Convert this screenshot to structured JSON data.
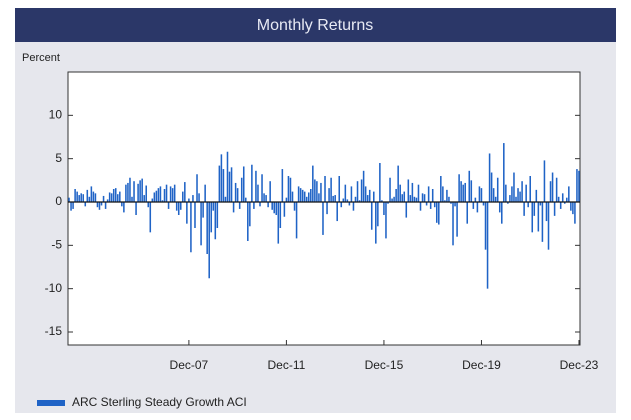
{
  "chart_data": {
    "type": "bar",
    "title": "Monthly Returns",
    "y_label": "Percent",
    "categories": [
      null,
      null,
      null,
      null,
      null,
      null,
      null,
      null,
      null,
      null,
      null,
      null,
      null,
      null,
      null,
      null,
      null,
      null,
      null,
      null,
      null,
      null,
      null,
      null,
      null,
      null,
      null,
      null,
      null,
      null,
      null,
      null,
      null,
      null,
      null,
      null,
      null,
      null,
      null,
      null,
      null,
      null,
      null,
      null,
      null,
      null,
      null,
      null,
      null,
      null,
      null,
      null,
      null,
      null,
      null,
      null,
      null,
      null,
      null,
      "Dec-07",
      null,
      null,
      null,
      null,
      null,
      null,
      null,
      null,
      null,
      null,
      null,
      null,
      null,
      null,
      null,
      null,
      null,
      null,
      null,
      null,
      null,
      null,
      null,
      null,
      null,
      null,
      null,
      null,
      null,
      null,
      null,
      null,
      null,
      null,
      null,
      null,
      null,
      null,
      null,
      null,
      null,
      null,
      null,
      null,
      null,
      null,
      null,
      "Dec-11",
      null,
      null,
      null,
      null,
      null,
      null,
      null,
      null,
      null,
      null,
      null,
      null,
      null,
      null,
      null,
      null,
      null,
      null,
      null,
      null,
      null,
      null,
      null,
      null,
      null,
      null,
      null,
      null,
      null,
      null,
      null,
      null,
      null,
      null,
      null,
      null,
      null,
      null,
      null,
      null,
      null,
      null,
      null,
      null,
      null,
      null,
      null,
      "Dec-15",
      null,
      null,
      null,
      null,
      null,
      null,
      null,
      null,
      null,
      null,
      null,
      null,
      null,
      null,
      null,
      null,
      null,
      null,
      null,
      null,
      null,
      null,
      null,
      null,
      null,
      null,
      null,
      null,
      null,
      null,
      null,
      null,
      null,
      null,
      null,
      null,
      null,
      null,
      null,
      null,
      null,
      null,
      null,
      null,
      null,
      null,
      null,
      "Dec-19",
      null,
      null,
      null,
      null,
      null,
      null,
      null,
      null,
      null,
      null,
      null,
      null,
      null,
      null,
      null,
      null,
      null,
      null,
      null,
      null,
      null,
      null,
      null,
      null,
      null,
      null,
      null,
      null,
      null,
      null,
      null,
      null,
      null,
      null,
      null,
      null,
      null,
      null,
      null,
      null,
      null,
      null,
      null,
      null,
      null,
      null,
      null,
      "Dec-23"
    ],
    "series": [
      {
        "name": "ARC Sterling Steady Growth ACI",
        "color": "#1f63c6",
        "values": [
          0.5,
          -1.0,
          -0.8,
          1.5,
          1.2,
          0.8,
          1.0,
          0.9,
          -0.5,
          1.4,
          0.6,
          1.8,
          1.2,
          1.0,
          -0.6,
          -0.9,
          -0.4,
          0.7,
          -0.8,
          0.3,
          1.1,
          1.0,
          1.5,
          1.6,
          0.9,
          1.2,
          -0.5,
          -1.2,
          2.0,
          2.2,
          2.8,
          0.6,
          2.4,
          -1.5,
          2.1,
          2.5,
          2.7,
          0.8,
          1.9,
          -0.6,
          -3.5,
          0.4,
          1.1,
          1.3,
          1.6,
          1.8,
          0.2,
          1.5,
          2.0,
          -0.8,
          1.8,
          1.6,
          2.0,
          -1.0,
          -1.5,
          -0.9,
          1.2,
          2.3,
          -2.5,
          0.4,
          -5.8,
          0.8,
          -3.0,
          3.2,
          1.0,
          -5.0,
          -1.8,
          2.0,
          -6.0,
          -8.8,
          -3.5,
          -1.0,
          -4.3,
          -3.0,
          4.2,
          5.5,
          3.8,
          0.6,
          5.8,
          3.5,
          4.0,
          -1.2,
          2.2,
          1.6,
          -0.8,
          2.8,
          4.1,
          0.5,
          -4.5,
          -2.8,
          4.3,
          -0.8,
          3.6,
          2.0,
          -0.5,
          3.2,
          1.0,
          0.8,
          -0.6,
          2.4,
          -0.9,
          -1.3,
          -1.5,
          -4.8,
          -3.0,
          3.8,
          -1.7,
          0.5,
          3.0,
          2.8,
          1.2,
          -1.0,
          -4.2,
          1.8,
          1.6,
          1.4,
          1.2,
          0.6,
          1.1,
          1.5,
          4.2,
          2.6,
          2.4,
          1.0,
          2.2,
          -3.8,
          3.0,
          -1.4,
          1.6,
          2.8,
          0.7,
          0.8,
          -2.2,
          3.0,
          -0.6,
          0.4,
          2.0,
          0.3,
          -0.4,
          1.8,
          -1.0,
          0.6,
          2.4,
          0.2,
          2.6,
          3.6,
          1.8,
          0.8,
          1.4,
          -3.2,
          1.2,
          -4.8,
          -2.8,
          4.5,
          0.2,
          -1.5,
          -4.2,
          -0.2,
          2.8,
          0.4,
          0.6,
          1.5,
          4.2,
          2.0,
          0.9,
          1.2,
          -1.8,
          2.6,
          0.8,
          2.2,
          0.6,
          0.5,
          2.0,
          -1.0,
          1.0,
          0.9,
          -0.4,
          1.8,
          -0.8,
          1.5,
          -0.6,
          -2.4,
          -2.6,
          3.0,
          1.8,
          0.2,
          1.4,
          0.6,
          -0.2,
          -5.0,
          -0.5,
          -4.0,
          3.2,
          2.4,
          2.0,
          2.2,
          -2.5,
          3.6,
          2.5,
          -0.8,
          0.5,
          -1.2,
          1.8,
          1.6,
          -0.4,
          -5.5,
          -10.0,
          5.6,
          3.4,
          1.6,
          0.6,
          2.8,
          -1.2,
          -2.5,
          6.8,
          2.0,
          -0.2,
          0.8,
          1.8,
          3.4,
          0.6,
          1.6,
          1.2,
          2.4,
          -1.6,
          2.0,
          -0.6,
          3.0,
          -3.5,
          -1.6,
          1.4,
          -3.4,
          -0.4,
          -4.6,
          4.8,
          -2.2,
          -5.5,
          2.4,
          3.4,
          -1.6,
          2.8,
          0.6,
          -0.8,
          1.0,
          -0.2,
          0.5,
          1.8,
          -1.0,
          -1.4,
          -2.5,
          3.8,
          3.6
        ]
      }
    ],
    "ylim": [
      -16.5,
      15
    ],
    "yticks": [
      -15,
      -10,
      -5,
      0,
      5,
      10
    ],
    "legend": "bottom-left"
  }
}
